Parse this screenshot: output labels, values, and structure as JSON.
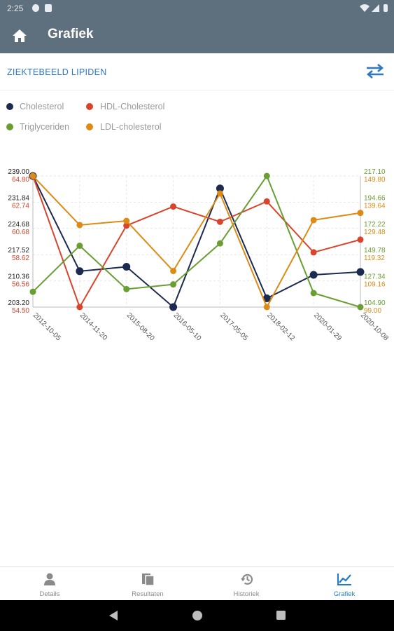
{
  "status": {
    "time": "2:25"
  },
  "header": {
    "title": "Grafiek",
    "home_icon": "home-icon"
  },
  "subheader": {
    "label": "ZIEKTEBEELD LIPIDEN",
    "swap_icon": "swap-icon"
  },
  "legend": [
    {
      "label": "Cholesterol",
      "color": "#1b2a4e"
    },
    {
      "label": "HDL-Cholesterol",
      "color": "#d9442c"
    },
    {
      "label": "Triglyceriden",
      "color": "#6a9e33"
    },
    {
      "label": "LDL-cholesterol",
      "color": "#dc8c16"
    }
  ],
  "chart_data": {
    "type": "line",
    "x": [
      "2012-10-05",
      "2014-11-20",
      "2015-08-20",
      "2016-05-10",
      "2017-05-05",
      "2018-02-12",
      "2020-01-29",
      "2020-10-08"
    ],
    "left_axis_ticks": {
      "Cholesterol": [
        "239.00",
        "231.84",
        "224.68",
        "217.52",
        "210.36",
        "203.20"
      ],
      "HDL-Cholesterol": [
        "64.80",
        "62.74",
        "60.68",
        "58.62",
        "56.56",
        "54.50"
      ]
    },
    "right_axis_ticks": {
      "Triglyceriden": [
        "217.10",
        "194.66",
        "172.22",
        "149.78",
        "127.34",
        "104.90"
      ],
      "LDL-cholesterol": [
        "149.80",
        "139.64",
        "129.48",
        "119.32",
        "109.16",
        "99.00"
      ]
    },
    "series": [
      {
        "name": "Cholesterol",
        "color": "#1b2a4e",
        "ylim": [
          203.2,
          239.0
        ],
        "values": [
          239.0,
          213.0,
          214.2,
          203.2,
          235.6,
          205.6,
          212.0,
          212.8
        ]
      },
      {
        "name": "HDL-Cholesterol",
        "color": "#d9442c",
        "ylim": [
          54.5,
          64.8
        ],
        "values": [
          64.8,
          54.5,
          60.9,
          62.4,
          61.2,
          62.8,
          58.8,
          59.8
        ]
      },
      {
        "name": "Triglyceriden",
        "color": "#6a9e33",
        "ylim": [
          104.9,
          217.1
        ],
        "values": [
          118.0,
          157.4,
          120.3,
          124.3,
          159.4,
          217.1,
          116.9,
          104.9
        ]
      },
      {
        "name": "LDL-cholesterol",
        "color": "#dc8c16",
        "ylim": [
          99.0,
          149.8
        ],
        "values": [
          149.8,
          130.8,
          132.4,
          113.0,
          143.0,
          99.0,
          132.7,
          135.5
        ]
      }
    ]
  },
  "nav": [
    {
      "label": "Details",
      "icon": "person-icon",
      "active": false
    },
    {
      "label": "Resultaten",
      "icon": "documents-icon",
      "active": false
    },
    {
      "label": "Historiek",
      "icon": "history-icon",
      "active": false
    },
    {
      "label": "Grafiek",
      "icon": "chart-icon",
      "active": true
    }
  ]
}
